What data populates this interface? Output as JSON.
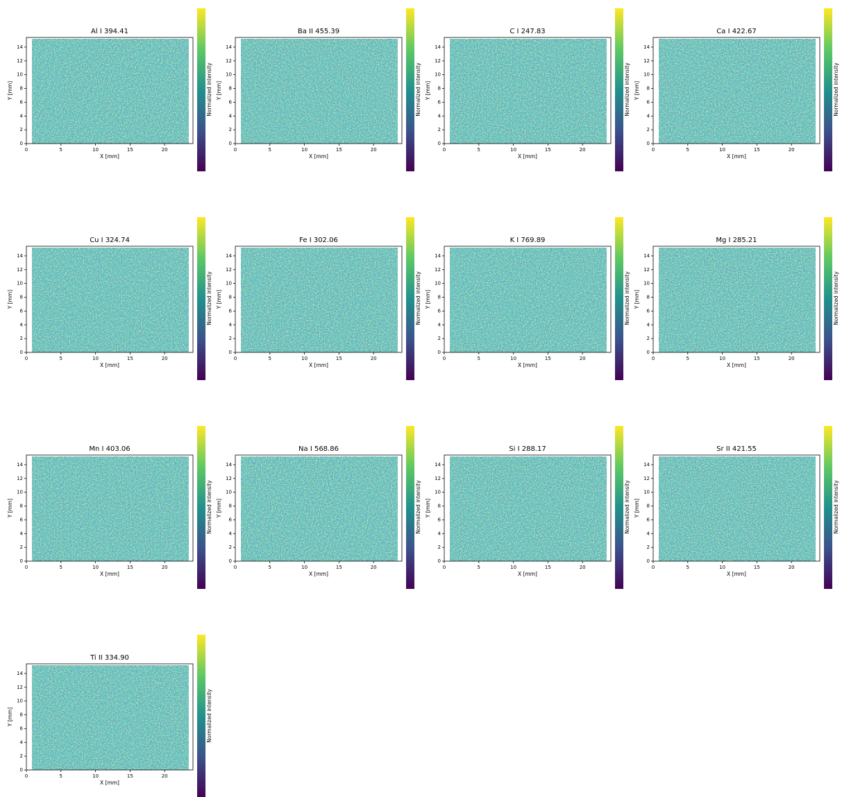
{
  "chart_data": [
    {
      "type": "heatmap",
      "title": "Al I 394.41",
      "xlabel": "X [mm]",
      "ylabel": "Y [mm]",
      "colorbar_label": "Normalized intensity",
      "colormap": [
        "#440154",
        "#3b528b",
        "#21918c",
        "#5ec962",
        "#fde725"
      ],
      "xlim": [
        0,
        24.1
      ],
      "ylim": [
        0,
        15.4
      ],
      "xticks": [
        0,
        5,
        10,
        15,
        20
      ],
      "yticks": [
        0,
        2,
        4,
        6,
        8,
        10,
        12,
        14
      ]
    },
    {
      "type": "heatmap",
      "title": "Ba II 455.39",
      "xlabel": "X [mm]",
      "ylabel": "Y [mm]",
      "colorbar_label": "Normalized intensity",
      "colormap": [
        "#440154",
        "#3b528b",
        "#21918c",
        "#5ec962",
        "#fde725"
      ],
      "xlim": [
        0,
        24.1
      ],
      "ylim": [
        0,
        15.4
      ],
      "xticks": [
        0,
        5,
        10,
        15,
        20
      ],
      "yticks": [
        0,
        2,
        4,
        6,
        8,
        10,
        12,
        14
      ]
    },
    {
      "type": "heatmap",
      "title": "C I 247.83",
      "xlabel": "X [mm]",
      "ylabel": "Y [mm]",
      "colorbar_label": "Normalized intensity",
      "colormap": [
        "#440154",
        "#3b528b",
        "#21918c",
        "#5ec962",
        "#fde725"
      ],
      "xlim": [
        0,
        24.1
      ],
      "ylim": [
        0,
        15.4
      ],
      "xticks": [
        0,
        5,
        10,
        15,
        20
      ],
      "yticks": [
        0,
        2,
        4,
        6,
        8,
        10,
        12,
        14
      ]
    },
    {
      "type": "heatmap",
      "title": "Ca I 422.67",
      "xlabel": "X [mm]",
      "ylabel": "Y [mm]",
      "colorbar_label": "Normalized intensity",
      "colormap": [
        "#440154",
        "#3b528b",
        "#21918c",
        "#5ec962",
        "#fde725"
      ],
      "xlim": [
        0,
        24.1
      ],
      "ylim": [
        0,
        15.4
      ],
      "xticks": [
        0,
        5,
        10,
        15,
        20
      ],
      "yticks": [
        0,
        2,
        4,
        6,
        8,
        10,
        12,
        14
      ]
    },
    {
      "type": "heatmap",
      "title": "Cu I 324.74",
      "xlabel": "X [mm]",
      "ylabel": "Y [mm]",
      "colorbar_label": "Normalized intensity",
      "colormap": [
        "#440154",
        "#3b528b",
        "#21918c",
        "#5ec962",
        "#fde725"
      ],
      "xlim": [
        0,
        24.1
      ],
      "ylim": [
        0,
        15.4
      ],
      "xticks": [
        0,
        5,
        10,
        15,
        20
      ],
      "yticks": [
        0,
        2,
        4,
        6,
        8,
        10,
        12,
        14
      ]
    },
    {
      "type": "heatmap",
      "title": "Fe I 302.06",
      "xlabel": "X [mm]",
      "ylabel": "Y [mm]",
      "colorbar_label": "Normalized intensity",
      "colormap": [
        "#440154",
        "#3b528b",
        "#21918c",
        "#5ec962",
        "#fde725"
      ],
      "xlim": [
        0,
        24.1
      ],
      "ylim": [
        0,
        15.4
      ],
      "xticks": [
        0,
        5,
        10,
        15,
        20
      ],
      "yticks": [
        0,
        2,
        4,
        6,
        8,
        10,
        12,
        14
      ]
    },
    {
      "type": "heatmap",
      "title": "K I 769.89",
      "xlabel": "X [mm]",
      "ylabel": "Y [mm]",
      "colorbar_label": "Normalized intensity",
      "colormap": [
        "#440154",
        "#3b528b",
        "#21918c",
        "#5ec962",
        "#fde725"
      ],
      "xlim": [
        0,
        24.1
      ],
      "ylim": [
        0,
        15.4
      ],
      "xticks": [
        0,
        5,
        10,
        15,
        20
      ],
      "yticks": [
        0,
        2,
        4,
        6,
        8,
        10,
        12,
        14
      ]
    },
    {
      "type": "heatmap",
      "title": "Mg I 285.21",
      "xlabel": "X [mm]",
      "ylabel": "Y [mm]",
      "colorbar_label": "Normalized intensity",
      "colormap": [
        "#440154",
        "#3b528b",
        "#21918c",
        "#5ec962",
        "#fde725"
      ],
      "xlim": [
        0,
        24.1
      ],
      "ylim": [
        0,
        15.4
      ],
      "xticks": [
        0,
        5,
        10,
        15,
        20
      ],
      "yticks": [
        0,
        2,
        4,
        6,
        8,
        10,
        12,
        14
      ]
    },
    {
      "type": "heatmap",
      "title": "Mn I 403.06",
      "xlabel": "X [mm]",
      "ylabel": "Y [mm]",
      "colorbar_label": "Normalized intensity",
      "colormap": [
        "#440154",
        "#3b528b",
        "#21918c",
        "#5ec962",
        "#fde725"
      ],
      "xlim": [
        0,
        24.1
      ],
      "ylim": [
        0,
        15.4
      ],
      "xticks": [
        0,
        5,
        10,
        15,
        20
      ],
      "yticks": [
        0,
        2,
        4,
        6,
        8,
        10,
        12,
        14
      ]
    },
    {
      "type": "heatmap",
      "title": "Na I 568.86",
      "xlabel": "X [mm]",
      "ylabel": "Y [mm]",
      "colorbar_label": "Normalized intensity",
      "colormap": [
        "#440154",
        "#3b528b",
        "#21918c",
        "#5ec962",
        "#fde725"
      ],
      "xlim": [
        0,
        24.1
      ],
      "ylim": [
        0,
        15.4
      ],
      "xticks": [
        0,
        5,
        10,
        15,
        20
      ],
      "yticks": [
        0,
        2,
        4,
        6,
        8,
        10,
        12,
        14
      ]
    },
    {
      "type": "heatmap",
      "title": "Si I 288.17",
      "xlabel": "X [mm]",
      "ylabel": "Y [mm]",
      "colorbar_label": "Normalized intensity",
      "colormap": [
        "#440154",
        "#3b528b",
        "#21918c",
        "#5ec962",
        "#fde725"
      ],
      "xlim": [
        0,
        24.1
      ],
      "ylim": [
        0,
        15.4
      ],
      "xticks": [
        0,
        5,
        10,
        15,
        20
      ],
      "yticks": [
        0,
        2,
        4,
        6,
        8,
        10,
        12,
        14
      ]
    },
    {
      "type": "heatmap",
      "title": "Sr II 421.55",
      "xlabel": "X [mm]",
      "ylabel": "Y [mm]",
      "colorbar_label": "Normalized intensity",
      "colormap": [
        "#440154",
        "#3b528b",
        "#21918c",
        "#5ec962",
        "#fde725"
      ],
      "xlim": [
        0,
        24.1
      ],
      "ylim": [
        0,
        15.4
      ],
      "xticks": [
        0,
        5,
        10,
        15,
        20
      ],
      "yticks": [
        0,
        2,
        4,
        6,
        8,
        10,
        12,
        14
      ]
    },
    {
      "type": "heatmap",
      "title": "Ti II 334.90",
      "xlabel": "X [mm]",
      "ylabel": "Y [mm]",
      "colorbar_label": "Normalized intensity",
      "colormap": [
        "#440154",
        "#3b528b",
        "#21918c",
        "#5ec962",
        "#fde725"
      ],
      "xlim": [
        0,
        24.1
      ],
      "ylim": [
        0,
        15.4
      ],
      "xticks": [
        0,
        5,
        10,
        15,
        20
      ],
      "yticks": [
        0,
        2,
        4,
        6,
        8,
        10,
        12,
        14
      ]
    }
  ]
}
